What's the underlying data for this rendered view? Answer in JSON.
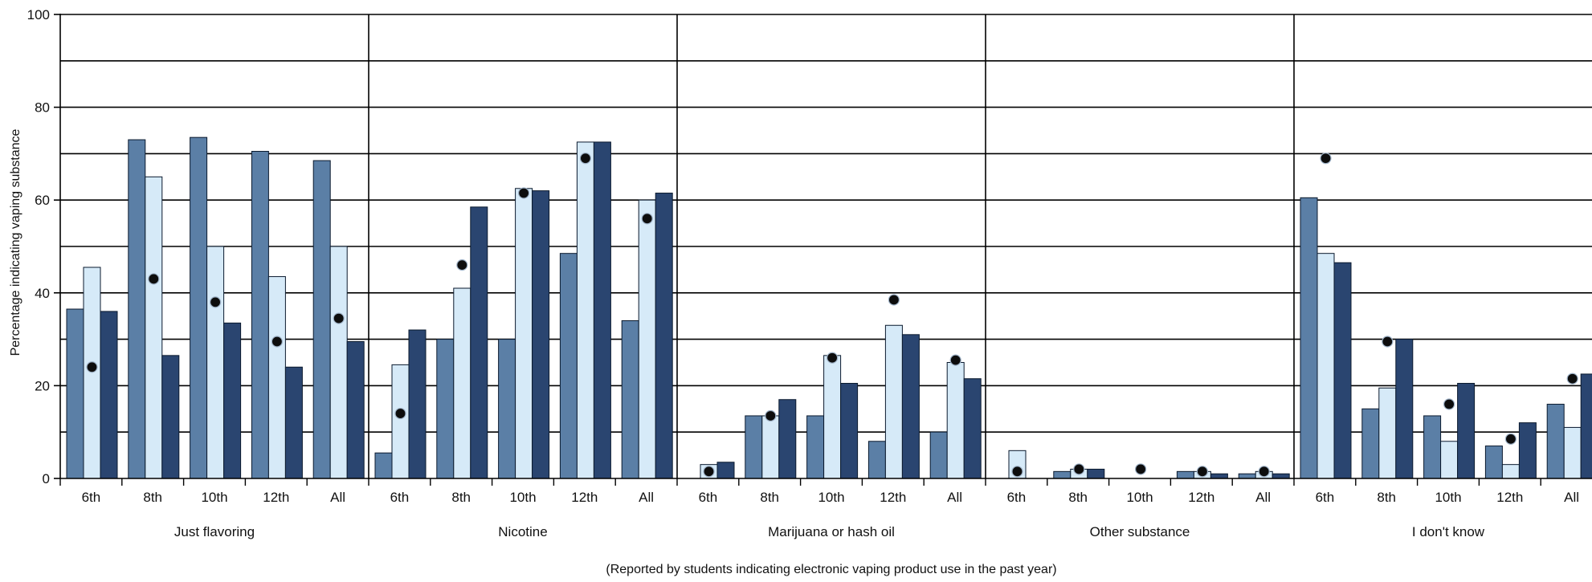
{
  "chart_data": {
    "type": "bar",
    "ylabel": "Percentage indicating vaping substance",
    "xlabel": "",
    "note": "(Reported by students indicating electronic vaping product use in the past year)",
    "ylim": [
      0,
      100
    ],
    "y_ticks": [
      "0",
      "20",
      "40",
      "60",
      "80",
      "100"
    ],
    "grid": true,
    "grades": [
      "6th",
      "8th",
      "10th",
      "12th",
      "All"
    ],
    "groups": [
      {
        "name": "Just flavoring",
        "bar1": [
          36.5,
          73,
          73.5,
          70.5,
          68.5
        ],
        "bar2": [
          45.5,
          65,
          50,
          43.5,
          50
        ],
        "bar3": [
          36,
          26.5,
          33.5,
          24,
          29.5
        ],
        "dots": [
          24,
          43,
          38,
          29.5,
          34.5
        ]
      },
      {
        "name": "Nicotine",
        "bar1": [
          5.5,
          30,
          30,
          48.5,
          34
        ],
        "bar2": [
          24.5,
          41,
          62.5,
          72.5,
          60
        ],
        "bar3": [
          32,
          58.5,
          62,
          72.5,
          61.5
        ],
        "dots": [
          14,
          46,
          61.5,
          69,
          56
        ]
      },
      {
        "name": "Marijuana or hash oil",
        "bar1": [
          0,
          13.5,
          13.5,
          8,
          10
        ],
        "bar2": [
          3,
          13.5,
          26.5,
          33,
          25
        ],
        "bar3": [
          3.5,
          17,
          20.5,
          31,
          21.5
        ],
        "dots": [
          1.5,
          13.5,
          26,
          38.5,
          25.5
        ]
      },
      {
        "name": "Other substance",
        "bar1": [
          0,
          1.5,
          0,
          1.5,
          1
        ],
        "bar2": [
          6,
          2,
          0,
          1.5,
          1.5
        ],
        "bar3": [
          0,
          2,
          0,
          1,
          1
        ],
        "dots": [
          1.5,
          2,
          2,
          1.5,
          1.5
        ]
      },
      {
        "name": "I don't know",
        "bar1": [
          60.5,
          15,
          13.5,
          7,
          16
        ],
        "bar2": [
          48.5,
          19.5,
          8,
          3,
          11
        ],
        "bar3": [
          46.5,
          30,
          20.5,
          12,
          22.5
        ],
        "dots": [
          69,
          29.5,
          16,
          8.5,
          21.5
        ]
      }
    ],
    "colors": {
      "bar1": "#5b7fa6",
      "bar2": "#d6eaf8",
      "bar3": "#2a4570",
      "dot": "#0d0d0d",
      "grid": "#000000"
    }
  }
}
